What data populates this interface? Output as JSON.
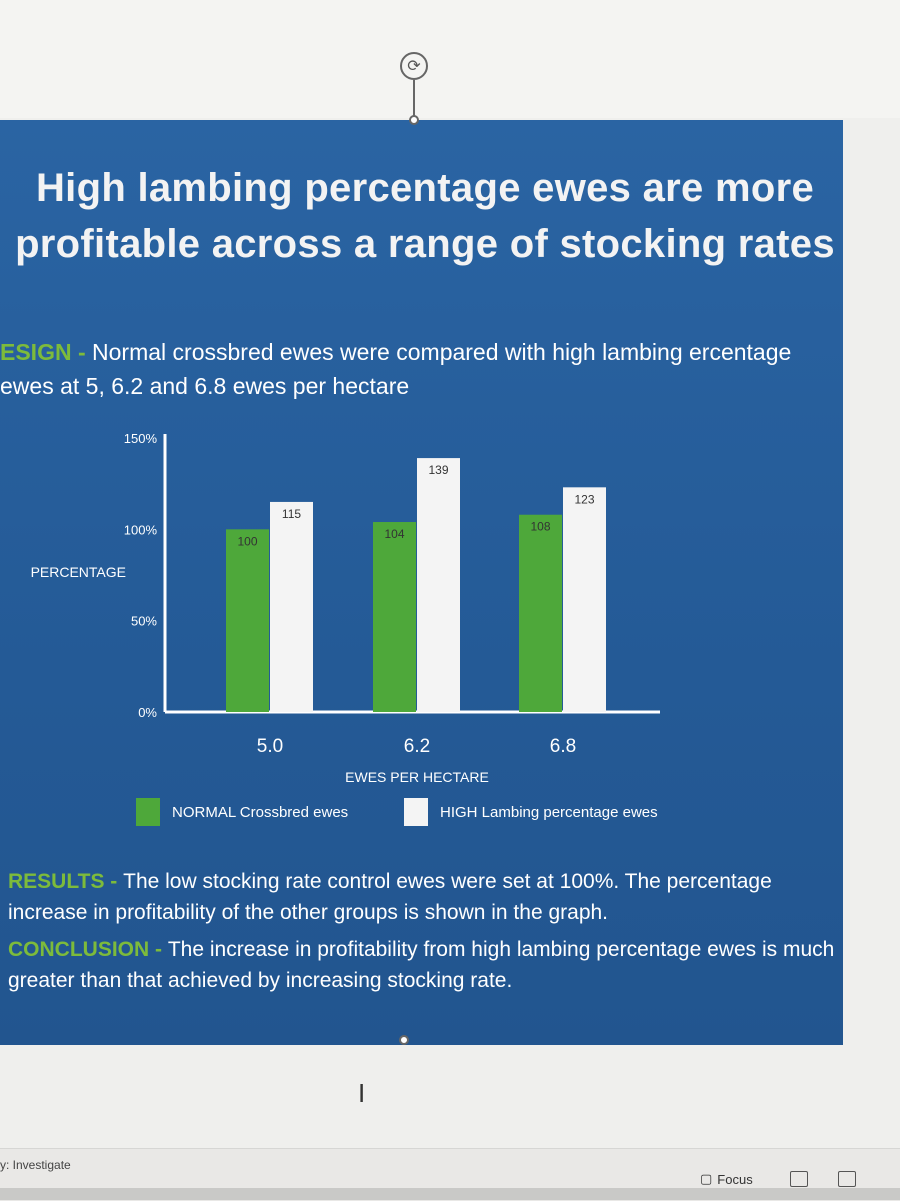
{
  "slide": {
    "title": "High lambing percentage ewes are more profitable across a range of stocking rates",
    "design_heading": "ESIGN",
    "design_sep": " - ",
    "design_text": "Normal crossbred ewes were compared with high lambing ercentage ewes at 5, 6.2 and 6.8 ewes per hectare",
    "results_heading": "RESULTS",
    "results_sep": " - ",
    "results_text": "The low stocking rate control ewes were set at 100%. The percentage increase in profitability of the other groups is shown in the graph.",
    "conclusion_heading": "CONCLUSION",
    "conclusion_sep": " - ",
    "conclusion_text": "The increase in profitability from high lambing percentage ewes is much greater than that achieved by increasing stocking rate."
  },
  "colors": {
    "slide_background": "#285f9c",
    "heading_green": "#7dbb3b",
    "normal_bar": "#4ea83a",
    "high_bar": "#f4f4f4"
  },
  "chart_data": {
    "type": "bar",
    "categories": [
      "5.0",
      "6.2",
      "6.8"
    ],
    "series": [
      {
        "name": "NORMAL Crossbred ewes",
        "values": [
          100,
          104,
          108
        ],
        "color": "#4ea83a"
      },
      {
        "name": "HIGH Lambing percentage ewes",
        "values": [
          115,
          139,
          123
        ],
        "color": "#f4f4f4"
      }
    ],
    "value_labels": [
      [
        "100",
        "104",
        "108"
      ],
      [
        "115",
        "139",
        "123"
      ]
    ],
    "xlabel": "EWES PER HECTARE",
    "ylabel": "PERCENTAGE",
    "yticks": [
      "0%",
      "50%",
      "100%",
      "150%"
    ],
    "ytick_values": [
      0,
      50,
      100,
      150
    ],
    "ylim": [
      0,
      150
    ],
    "grid": false,
    "legend_position": "bottom"
  },
  "editor": {
    "status_left": "y: Investigate",
    "focus_label": "Focus"
  },
  "icons": [
    "rotate-handle-icon",
    "text-cursor-icon",
    "focus-icon",
    "read-mode-icon",
    "print-layout-icon"
  ]
}
